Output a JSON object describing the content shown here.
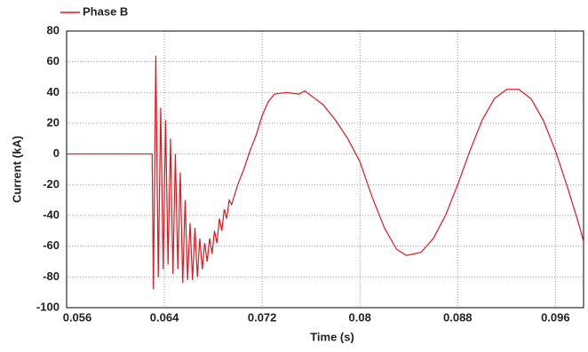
{
  "chart_data": {
    "type": "line",
    "xlabel": "Time (s)",
    "ylabel": "Current (kA)",
    "xlim": [
      0.056,
      0.0983
    ],
    "xticks": [
      0.056,
      0.064,
      0.072,
      {
        "value": 0.08,
        "label": "0.08"
      },
      0.088,
      0.096
    ],
    "ylim": [
      -100,
      80
    ],
    "yticks": [
      -100,
      -80,
      -60,
      -40,
      -20,
      0,
      20,
      40,
      60,
      80
    ],
    "grid": true,
    "legend": "top-left",
    "series": [
      {
        "name": "Phase B",
        "color": "#e8141b",
        "x": [
          0.056,
          0.063,
          0.0631,
          0.0633,
          0.0635,
          0.0637,
          0.0639,
          0.0641,
          0.0643,
          0.0645,
          0.0647,
          0.0649,
          0.0651,
          0.0653,
          0.0655,
          0.0657,
          0.0659,
          0.0661,
          0.0663,
          0.0665,
          0.0667,
          0.0669,
          0.0671,
          0.0673,
          0.0675,
          0.0677,
          0.0679,
          0.0681,
          0.0683,
          0.0685,
          0.0687,
          0.0689,
          0.0691,
          0.0693,
          0.0695,
          0.07,
          0.0705,
          0.071,
          0.0715,
          0.072,
          0.0725,
          0.073,
          0.074,
          0.075,
          0.0755,
          0.076,
          0.077,
          0.078,
          0.079,
          0.08,
          0.081,
          0.082,
          0.083,
          0.0838,
          0.085,
          0.086,
          0.087,
          0.088,
          0.089,
          0.09,
          0.091,
          0.092,
          0.093,
          0.094,
          0.095,
          0.096,
          0.097,
          0.098,
          0.0983
        ],
        "values": [
          0,
          0,
          -88,
          64,
          -80,
          30,
          -75,
          22,
          -72,
          10,
          -78,
          0,
          -75,
          -12,
          -84,
          -30,
          -82,
          -45,
          -82,
          -48,
          -80,
          -55,
          -75,
          -58,
          -70,
          -55,
          -65,
          -50,
          -58,
          -42,
          -50,
          -36,
          -42,
          -30,
          -33,
          -20,
          -10,
          2,
          12,
          25,
          34,
          39,
          40,
          39,
          41,
          38,
          32,
          22,
          10,
          -5,
          -28,
          -48,
          -62,
          -66,
          -64,
          -55,
          -40,
          -20,
          2,
          22,
          36,
          42,
          42,
          36,
          22,
          2,
          -22,
          -48,
          -57
        ]
      }
    ]
  }
}
